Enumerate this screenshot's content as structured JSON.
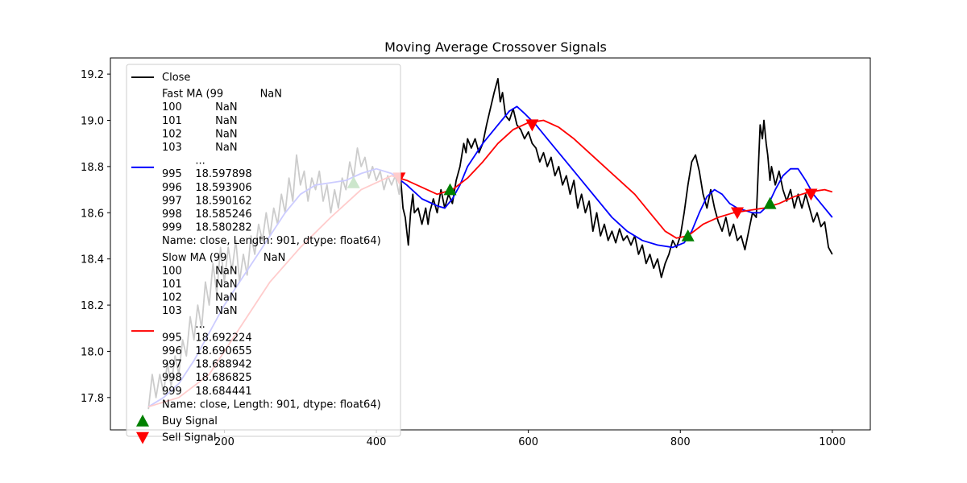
{
  "chart_data": {
    "type": "line",
    "title": "Moving Average Crossover Signals",
    "xlabel": "",
    "ylabel": "",
    "xlim": [
      50,
      1050
    ],
    "ylim": [
      17.66,
      19.27
    ],
    "xticks": [
      200,
      400,
      600,
      800,
      1000
    ],
    "yticks": [
      17.8,
      18.0,
      18.2,
      18.4,
      18.6,
      18.8,
      19.0,
      19.2
    ],
    "grid": false,
    "legend_position": "upper-left",
    "series": [
      {
        "name": "Close",
        "color": "#000000",
        "points": [
          [
            100,
            17.75
          ],
          [
            105,
            17.9
          ],
          [
            110,
            17.8
          ],
          [
            115,
            17.9
          ],
          [
            120,
            17.82
          ],
          [
            125,
            17.95
          ],
          [
            130,
            17.85
          ],
          [
            135,
            17.98
          ],
          [
            140,
            17.9
          ],
          [
            145,
            18.05
          ],
          [
            150,
            17.98
          ],
          [
            155,
            18.15
          ],
          [
            160,
            18.05
          ],
          [
            165,
            18.2
          ],
          [
            170,
            18.1
          ],
          [
            175,
            18.3
          ],
          [
            180,
            18.2
          ],
          [
            185,
            18.38
          ],
          [
            190,
            18.25
          ],
          [
            195,
            18.45
          ],
          [
            200,
            18.3
          ],
          [
            205,
            18.45
          ],
          [
            210,
            18.35
          ],
          [
            215,
            18.48
          ],
          [
            220,
            18.3
          ],
          [
            225,
            18.42
          ],
          [
            230,
            18.33
          ],
          [
            235,
            18.5
          ],
          [
            240,
            18.42
          ],
          [
            245,
            18.55
          ],
          [
            250,
            18.48
          ],
          [
            255,
            18.6
          ],
          [
            260,
            18.5
          ],
          [
            265,
            18.62
          ],
          [
            270,
            18.55
          ],
          [
            275,
            18.68
          ],
          [
            280,
            18.6
          ],
          [
            285,
            18.75
          ],
          [
            290,
            18.65
          ],
          [
            295,
            18.85
          ],
          [
            300,
            18.72
          ],
          [
            305,
            18.78
          ],
          [
            310,
            18.65
          ],
          [
            315,
            18.75
          ],
          [
            320,
            18.7
          ],
          [
            325,
            18.78
          ],
          [
            330,
            18.65
          ],
          [
            335,
            18.72
          ],
          [
            340,
            18.6
          ],
          [
            345,
            18.7
          ],
          [
            350,
            18.62
          ],
          [
            355,
            18.75
          ],
          [
            360,
            18.7
          ],
          [
            365,
            18.82
          ],
          [
            370,
            18.75
          ],
          [
            375,
            18.88
          ],
          [
            380,
            18.8
          ],
          [
            385,
            18.84
          ],
          [
            390,
            18.75
          ],
          [
            395,
            18.8
          ],
          [
            400,
            18.74
          ],
          [
            405,
            18.78
          ],
          [
            410,
            18.7
          ],
          [
            415,
            18.76
          ],
          [
            420,
            18.72
          ],
          [
            425,
            18.76
          ],
          [
            430,
            18.68
          ],
          [
            432,
            18.75
          ],
          [
            435,
            18.62
          ],
          [
            438,
            18.58
          ],
          [
            440,
            18.52
          ],
          [
            442,
            18.46
          ],
          [
            445,
            18.6
          ],
          [
            448,
            18.68
          ],
          [
            450,
            18.6
          ],
          [
            455,
            18.62
          ],
          [
            460,
            18.55
          ],
          [
            465,
            18.62
          ],
          [
            468,
            18.55
          ],
          [
            470,
            18.6
          ],
          [
            475,
            18.66
          ],
          [
            480,
            18.6
          ],
          [
            485,
            18.7
          ],
          [
            490,
            18.62
          ],
          [
            495,
            18.68
          ],
          [
            500,
            18.64
          ],
          [
            505,
            18.74
          ],
          [
            510,
            18.8
          ],
          [
            515,
            18.9
          ],
          [
            518,
            18.86
          ],
          [
            520,
            18.92
          ],
          [
            525,
            18.88
          ],
          [
            530,
            18.92
          ],
          [
            535,
            18.86
          ],
          [
            540,
            18.9
          ],
          [
            545,
            18.98
          ],
          [
            550,
            19.05
          ],
          [
            555,
            19.12
          ],
          [
            560,
            19.18
          ],
          [
            563,
            19.08
          ],
          [
            566,
            19.12
          ],
          [
            570,
            19.02
          ],
          [
            575,
            19.0
          ],
          [
            580,
            19.05
          ],
          [
            585,
            18.98
          ],
          [
            590,
            18.96
          ],
          [
            595,
            18.92
          ],
          [
            600,
            18.95
          ],
          [
            605,
            18.9
          ],
          [
            610,
            18.88
          ],
          [
            615,
            18.82
          ],
          [
            620,
            18.86
          ],
          [
            625,
            18.8
          ],
          [
            630,
            18.84
          ],
          [
            635,
            18.76
          ],
          [
            640,
            18.8
          ],
          [
            645,
            18.72
          ],
          [
            650,
            18.76
          ],
          [
            655,
            18.68
          ],
          [
            660,
            18.74
          ],
          [
            665,
            18.62
          ],
          [
            670,
            18.68
          ],
          [
            675,
            18.6
          ],
          [
            680,
            18.65
          ],
          [
            685,
            18.52
          ],
          [
            690,
            18.6
          ],
          [
            695,
            18.5
          ],
          [
            700,
            18.55
          ],
          [
            705,
            18.48
          ],
          [
            710,
            18.52
          ],
          [
            715,
            18.47
          ],
          [
            720,
            18.53
          ],
          [
            725,
            18.48
          ],
          [
            730,
            18.5
          ],
          [
            735,
            18.46
          ],
          [
            740,
            18.5
          ],
          [
            745,
            18.42
          ],
          [
            750,
            18.46
          ],
          [
            755,
            18.38
          ],
          [
            760,
            18.42
          ],
          [
            765,
            18.36
          ],
          [
            770,
            18.4
          ],
          [
            775,
            18.32
          ],
          [
            780,
            18.38
          ],
          [
            785,
            18.42
          ],
          [
            790,
            18.48
          ],
          [
            795,
            18.45
          ],
          [
            800,
            18.5
          ],
          [
            805,
            18.6
          ],
          [
            810,
            18.72
          ],
          [
            815,
            18.82
          ],
          [
            820,
            18.85
          ],
          [
            825,
            18.78
          ],
          [
            830,
            18.68
          ],
          [
            835,
            18.62
          ],
          [
            840,
            18.7
          ],
          [
            845,
            18.62
          ],
          [
            850,
            18.56
          ],
          [
            855,
            18.52
          ],
          [
            860,
            18.58
          ],
          [
            865,
            18.5
          ],
          [
            870,
            18.55
          ],
          [
            875,
            18.48
          ],
          [
            880,
            18.5
          ],
          [
            885,
            18.44
          ],
          [
            890,
            18.52
          ],
          [
            895,
            18.6
          ],
          [
            900,
            18.58
          ],
          [
            905,
            18.98
          ],
          [
            908,
            18.92
          ],
          [
            910,
            19.0
          ],
          [
            913,
            18.9
          ],
          [
            915,
            18.85
          ],
          [
            918,
            18.74
          ],
          [
            920,
            18.8
          ],
          [
            925,
            18.72
          ],
          [
            930,
            18.78
          ],
          [
            935,
            18.7
          ],
          [
            940,
            18.65
          ],
          [
            945,
            18.7
          ],
          [
            950,
            18.62
          ],
          [
            955,
            18.68
          ],
          [
            960,
            18.62
          ],
          [
            965,
            18.68
          ],
          [
            970,
            18.62
          ],
          [
            975,
            18.56
          ],
          [
            980,
            18.6
          ],
          [
            985,
            18.54
          ],
          [
            990,
            18.56
          ],
          [
            995,
            18.45
          ],
          [
            1000,
            18.42
          ]
        ]
      },
      {
        "name": "Fast MA (99           NaN\n100          NaN\n101          NaN\n102          NaN\n103          NaN\n          ...   \n995    18.597898\n996    18.593906\n997    18.590162\n998    18.585246\n999    18.580282\nName: close, Length: 901, dtype: float64)",
        "color": "#0000ff",
        "points": [
          [
            100,
            17.76
          ],
          [
            120,
            17.8
          ],
          [
            140,
            17.86
          ],
          [
            160,
            17.96
          ],
          [
            180,
            18.08
          ],
          [
            200,
            18.2
          ],
          [
            220,
            18.3
          ],
          [
            240,
            18.4
          ],
          [
            260,
            18.5
          ],
          [
            280,
            18.6
          ],
          [
            300,
            18.68
          ],
          [
            320,
            18.72
          ],
          [
            340,
            18.73
          ],
          [
            360,
            18.74
          ],
          [
            380,
            18.77
          ],
          [
            400,
            18.79
          ],
          [
            420,
            18.77
          ],
          [
            440,
            18.72
          ],
          [
            460,
            18.66
          ],
          [
            480,
            18.63
          ],
          [
            490,
            18.62
          ],
          [
            500,
            18.66
          ],
          [
            510,
            18.72
          ],
          [
            520,
            18.8
          ],
          [
            540,
            18.9
          ],
          [
            560,
            18.98
          ],
          [
            575,
            19.04
          ],
          [
            585,
            19.06
          ],
          [
            595,
            19.03
          ],
          [
            610,
            18.98
          ],
          [
            630,
            18.9
          ],
          [
            650,
            18.82
          ],
          [
            670,
            18.74
          ],
          [
            690,
            18.66
          ],
          [
            710,
            18.58
          ],
          [
            730,
            18.52
          ],
          [
            750,
            18.48
          ],
          [
            770,
            18.46
          ],
          [
            790,
            18.45
          ],
          [
            805,
            18.47
          ],
          [
            815,
            18.52
          ],
          [
            825,
            18.6
          ],
          [
            835,
            18.67
          ],
          [
            845,
            18.7
          ],
          [
            855,
            18.68
          ],
          [
            865,
            18.64
          ],
          [
            875,
            18.62
          ],
          [
            885,
            18.61
          ],
          [
            895,
            18.6
          ],
          [
            905,
            18.6
          ],
          [
            915,
            18.63
          ],
          [
            925,
            18.7
          ],
          [
            935,
            18.76
          ],
          [
            945,
            18.79
          ],
          [
            955,
            18.79
          ],
          [
            965,
            18.74
          ],
          [
            975,
            18.68
          ],
          [
            985,
            18.64
          ],
          [
            1000,
            18.58
          ]
        ]
      },
      {
        "name": "Slow MA (99           NaN\n100          NaN\n101          NaN\n102          NaN\n103          NaN\n          ...   \n995    18.692224\n996    18.690655\n997    18.688942\n998    18.686825\n999    18.684441\nName: close, Length: 901, dtype: float64)",
        "color": "#ff0000",
        "points": [
          [
            100,
            17.76
          ],
          [
            140,
            17.8
          ],
          [
            180,
            17.9
          ],
          [
            220,
            18.1
          ],
          [
            260,
            18.3
          ],
          [
            300,
            18.45
          ],
          [
            340,
            18.58
          ],
          [
            380,
            18.7
          ],
          [
            420,
            18.76
          ],
          [
            440,
            18.74
          ],
          [
            460,
            18.71
          ],
          [
            480,
            18.68
          ],
          [
            500,
            18.7
          ],
          [
            520,
            18.75
          ],
          [
            540,
            18.82
          ],
          [
            560,
            18.9
          ],
          [
            580,
            18.96
          ],
          [
            600,
            18.99
          ],
          [
            620,
            19.0
          ],
          [
            640,
            18.97
          ],
          [
            660,
            18.92
          ],
          [
            680,
            18.86
          ],
          [
            700,
            18.8
          ],
          [
            720,
            18.74
          ],
          [
            740,
            18.68
          ],
          [
            760,
            18.6
          ],
          [
            780,
            18.52
          ],
          [
            795,
            18.49
          ],
          [
            810,
            18.5
          ],
          [
            830,
            18.55
          ],
          [
            850,
            18.58
          ],
          [
            870,
            18.6
          ],
          [
            890,
            18.61
          ],
          [
            910,
            18.62
          ],
          [
            930,
            18.64
          ],
          [
            950,
            18.67
          ],
          [
            970,
            18.69
          ],
          [
            990,
            18.7
          ],
          [
            1000,
            18.69
          ]
        ]
      }
    ],
    "signals": [
      {
        "name": "Buy Signal",
        "color": "#008000",
        "marker": "triangle-up",
        "points": [
          [
            370,
            18.73
          ],
          [
            497,
            18.7
          ],
          [
            810,
            18.5
          ],
          [
            918,
            18.64
          ]
        ]
      },
      {
        "name": "Sell Signal",
        "color": "#ff0000",
        "marker": "triangle-down",
        "points": [
          [
            430,
            18.75
          ],
          [
            605,
            18.98
          ],
          [
            875,
            18.6
          ],
          [
            972,
            18.68
          ]
        ]
      }
    ]
  }
}
